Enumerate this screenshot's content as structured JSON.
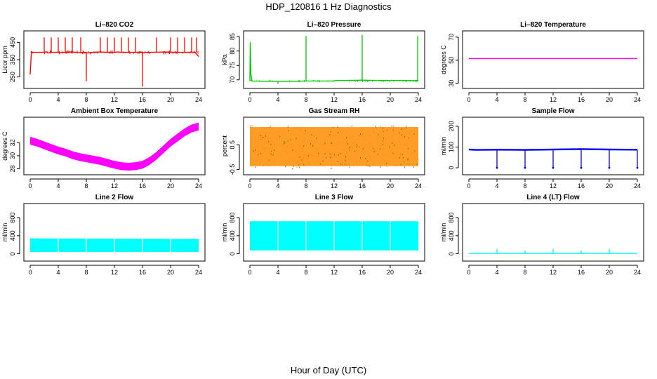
{
  "figure": {
    "title": "HDP_120816  1 Hz Diagnostics",
    "xlabel": "Hour of Day (UTC)"
  },
  "chart_data": [
    {
      "type": "line",
      "title": "Li–820 CO2",
      "ylabel": "Licor ppm",
      "color": "#ff0000",
      "xlim": [
        0,
        24
      ],
      "xticks": [
        0,
        4,
        8,
        12,
        16,
        20,
        24
      ],
      "ylim": [
        200,
        500
      ],
      "yticks": [
        250,
        350,
        450
      ],
      "x": [
        0,
        0.15,
        0.3,
        1,
        2,
        2.4,
        2.5,
        3,
        4,
        4.1,
        5,
        6,
        6.5,
        7,
        8,
        8.05,
        9,
        10,
        11,
        12,
        12.5,
        13,
        14,
        15,
        16,
        16.05,
        17,
        18,
        19,
        20,
        21,
        22,
        23,
        23.5,
        24
      ],
      "y": [
        265,
        380,
        392,
        392,
        393,
        395,
        388,
        392,
        393,
        390,
        392,
        394,
        392,
        391,
        392,
        388,
        393,
        394,
        392,
        392,
        394,
        393,
        392,
        392,
        393,
        390,
        392,
        393,
        394,
        393,
        392,
        392,
        393,
        392,
        368
      ],
      "spikes": [
        {
          "x": 2,
          "y": 478
        },
        {
          "x": 3,
          "y": 478
        },
        {
          "x": 4,
          "y": 478
        },
        {
          "x": 5,
          "y": 478
        },
        {
          "x": 6,
          "y": 478
        },
        {
          "x": 7.2,
          "y": 478
        },
        {
          "x": 8,
          "y": 225
        },
        {
          "x": 10,
          "y": 478
        },
        {
          "x": 11,
          "y": 478
        },
        {
          "x": 12,
          "y": 478
        },
        {
          "x": 13,
          "y": 478
        },
        {
          "x": 14,
          "y": 478
        },
        {
          "x": 15,
          "y": 478
        },
        {
          "x": 16,
          "y": 195
        },
        {
          "x": 18,
          "y": 478
        },
        {
          "x": 20,
          "y": 478
        },
        {
          "x": 21,
          "y": 478
        },
        {
          "x": 22,
          "y": 478
        },
        {
          "x": 23,
          "y": 478
        },
        {
          "x": 23.7,
          "y": 478
        }
      ]
    },
    {
      "type": "line",
      "title": "Li–820 Pressure",
      "ylabel": "kPa",
      "color": "#00cc00",
      "xlim": [
        0,
        24
      ],
      "xticks": [
        0,
        4,
        8,
        12,
        16,
        20,
        24
      ],
      "ylim": [
        68,
        86
      ],
      "yticks": [
        70,
        75,
        80,
        85
      ],
      "x": [
        0,
        0.05,
        0.15,
        0.3,
        2,
        4,
        6,
        8,
        10,
        12,
        12.3,
        14,
        16,
        18,
        20,
        22,
        24
      ],
      "y": [
        69.6,
        83,
        72,
        69.6,
        69.5,
        69.5,
        69.5,
        69.6,
        69.6,
        69.6,
        69.8,
        69.8,
        69.9,
        69.8,
        69.8,
        69.8,
        69.7
      ],
      "spikes": [
        {
          "x": 4,
          "y": 68.6
        },
        {
          "x": 8,
          "y": 85.2
        },
        {
          "x": 16,
          "y": 85.6
        },
        {
          "x": 23.9,
          "y": 85.2
        }
      ]
    },
    {
      "type": "line",
      "title": "Li–820 Temperature",
      "ylabel": "degrees C",
      "color": "#ff00ff",
      "xlim": [
        0,
        24
      ],
      "xticks": [
        0,
        4,
        8,
        12,
        16,
        20,
        24
      ],
      "ylim": [
        28,
        73
      ],
      "yticks": [
        30,
        50,
        70
      ],
      "x": [
        0,
        24
      ],
      "y": [
        51.5,
        51.5
      ]
    },
    {
      "type": "line",
      "title": "Ambient Box Temperature",
      "ylabel": "degrees C",
      "color": "#ff00ff",
      "xlim": [
        0,
        24
      ],
      "xticks": [
        0,
        4,
        8,
        12,
        16,
        20,
        24
      ],
      "ylim": [
        27.5,
        35.5
      ],
      "yticks": [
        28,
        30,
        32
      ],
      "x": [
        0,
        1,
        2,
        3,
        4,
        5,
        6,
        7,
        8,
        9,
        10,
        11,
        12,
        13,
        14,
        15,
        16,
        17,
        18,
        19,
        20,
        21,
        22,
        23,
        24
      ],
      "y": [
        32.3,
        32.0,
        31.6,
        31.2,
        30.8,
        30.5,
        30.1,
        29.8,
        29.6,
        29.4,
        29.2,
        28.9,
        28.6,
        28.4,
        28.3,
        28.4,
        28.6,
        29.2,
        30.0,
        31.0,
        32.0,
        32.8,
        33.6,
        34.2,
        34.5
      ],
      "band": 0.6
    },
    {
      "type": "scatter",
      "title": "Gas Stream RH",
      "ylabel": "percent",
      "color": "#ff8c00",
      "xlim": [
        0,
        24
      ],
      "xticks": [
        0,
        4,
        8,
        12,
        16,
        20,
        24
      ],
      "ylim": [
        -0.6,
        1.5
      ],
      "yticks": [
        -0.5,
        0.5
      ],
      "x": [
        0,
        24
      ],
      "y": [
        0.5,
        0.5
      ],
      "spread": [
        -0.45,
        1.3
      ]
    },
    {
      "type": "line",
      "title": "Sample Flow",
      "ylabel": "ml/min",
      "color": "#0000ff",
      "xlim": [
        0,
        24
      ],
      "xticks": [
        0,
        4,
        8,
        12,
        16,
        20,
        24
      ],
      "ylim": [
        -20,
        230
      ],
      "yticks": [
        0,
        100,
        200
      ],
      "x": [
        0,
        1,
        4,
        8,
        12,
        16,
        20,
        24
      ],
      "y": [
        88,
        86,
        87,
        86,
        88,
        90,
        88,
        87
      ],
      "spikes": [
        {
          "x": 4,
          "y": 0
        },
        {
          "x": 8,
          "y": 0
        },
        {
          "x": 12,
          "y": 0
        },
        {
          "x": 16,
          "y": 0
        },
        {
          "x": 20,
          "y": 0
        },
        {
          "x": 24,
          "y": 0
        }
      ]
    },
    {
      "type": "area",
      "title": "Line 2 Flow",
      "ylabel": "ml/min",
      "color": "#00ffff",
      "xlim": [
        0,
        24
      ],
      "xticks": [
        0,
        4,
        8,
        12,
        16,
        20,
        24
      ],
      "ylim": [
        -100,
        1050
      ],
      "yticks": [
        0,
        400,
        800
      ],
      "x": [
        0,
        24
      ],
      "y": [
        340,
        330
      ],
      "floor": 40,
      "gaps": [
        4,
        8,
        12,
        16,
        20
      ]
    },
    {
      "type": "area",
      "title": "Line 3 Flow",
      "ylabel": "ml/min",
      "color": "#00ffff",
      "xlim": [
        0,
        24
      ],
      "xticks": [
        0,
        4,
        8,
        12,
        16,
        20,
        24
      ],
      "ylim": [
        -100,
        1050
      ],
      "yticks": [
        0,
        400,
        800
      ],
      "x": [
        0,
        24
      ],
      "y": [
        720,
        720
      ],
      "floor": 75,
      "gaps": [
        4,
        8,
        12,
        16,
        20
      ]
    },
    {
      "type": "line",
      "title": "Line 4 (LT) Flow",
      "ylabel": "ml/min",
      "color": "#00ffff",
      "xlim": [
        0,
        24
      ],
      "xticks": [
        0,
        4,
        8,
        12,
        16,
        20,
        24
      ],
      "ylim": [
        -100,
        1050
      ],
      "yticks": [
        0,
        400,
        800
      ],
      "x": [
        0,
        24
      ],
      "y": [
        5,
        5
      ],
      "spikes": [
        {
          "x": 4,
          "y": 110
        },
        {
          "x": 8,
          "y": 70
        },
        {
          "x": 12,
          "y": 110
        },
        {
          "x": 16,
          "y": 70
        },
        {
          "x": 20,
          "y": 110
        }
      ]
    }
  ]
}
